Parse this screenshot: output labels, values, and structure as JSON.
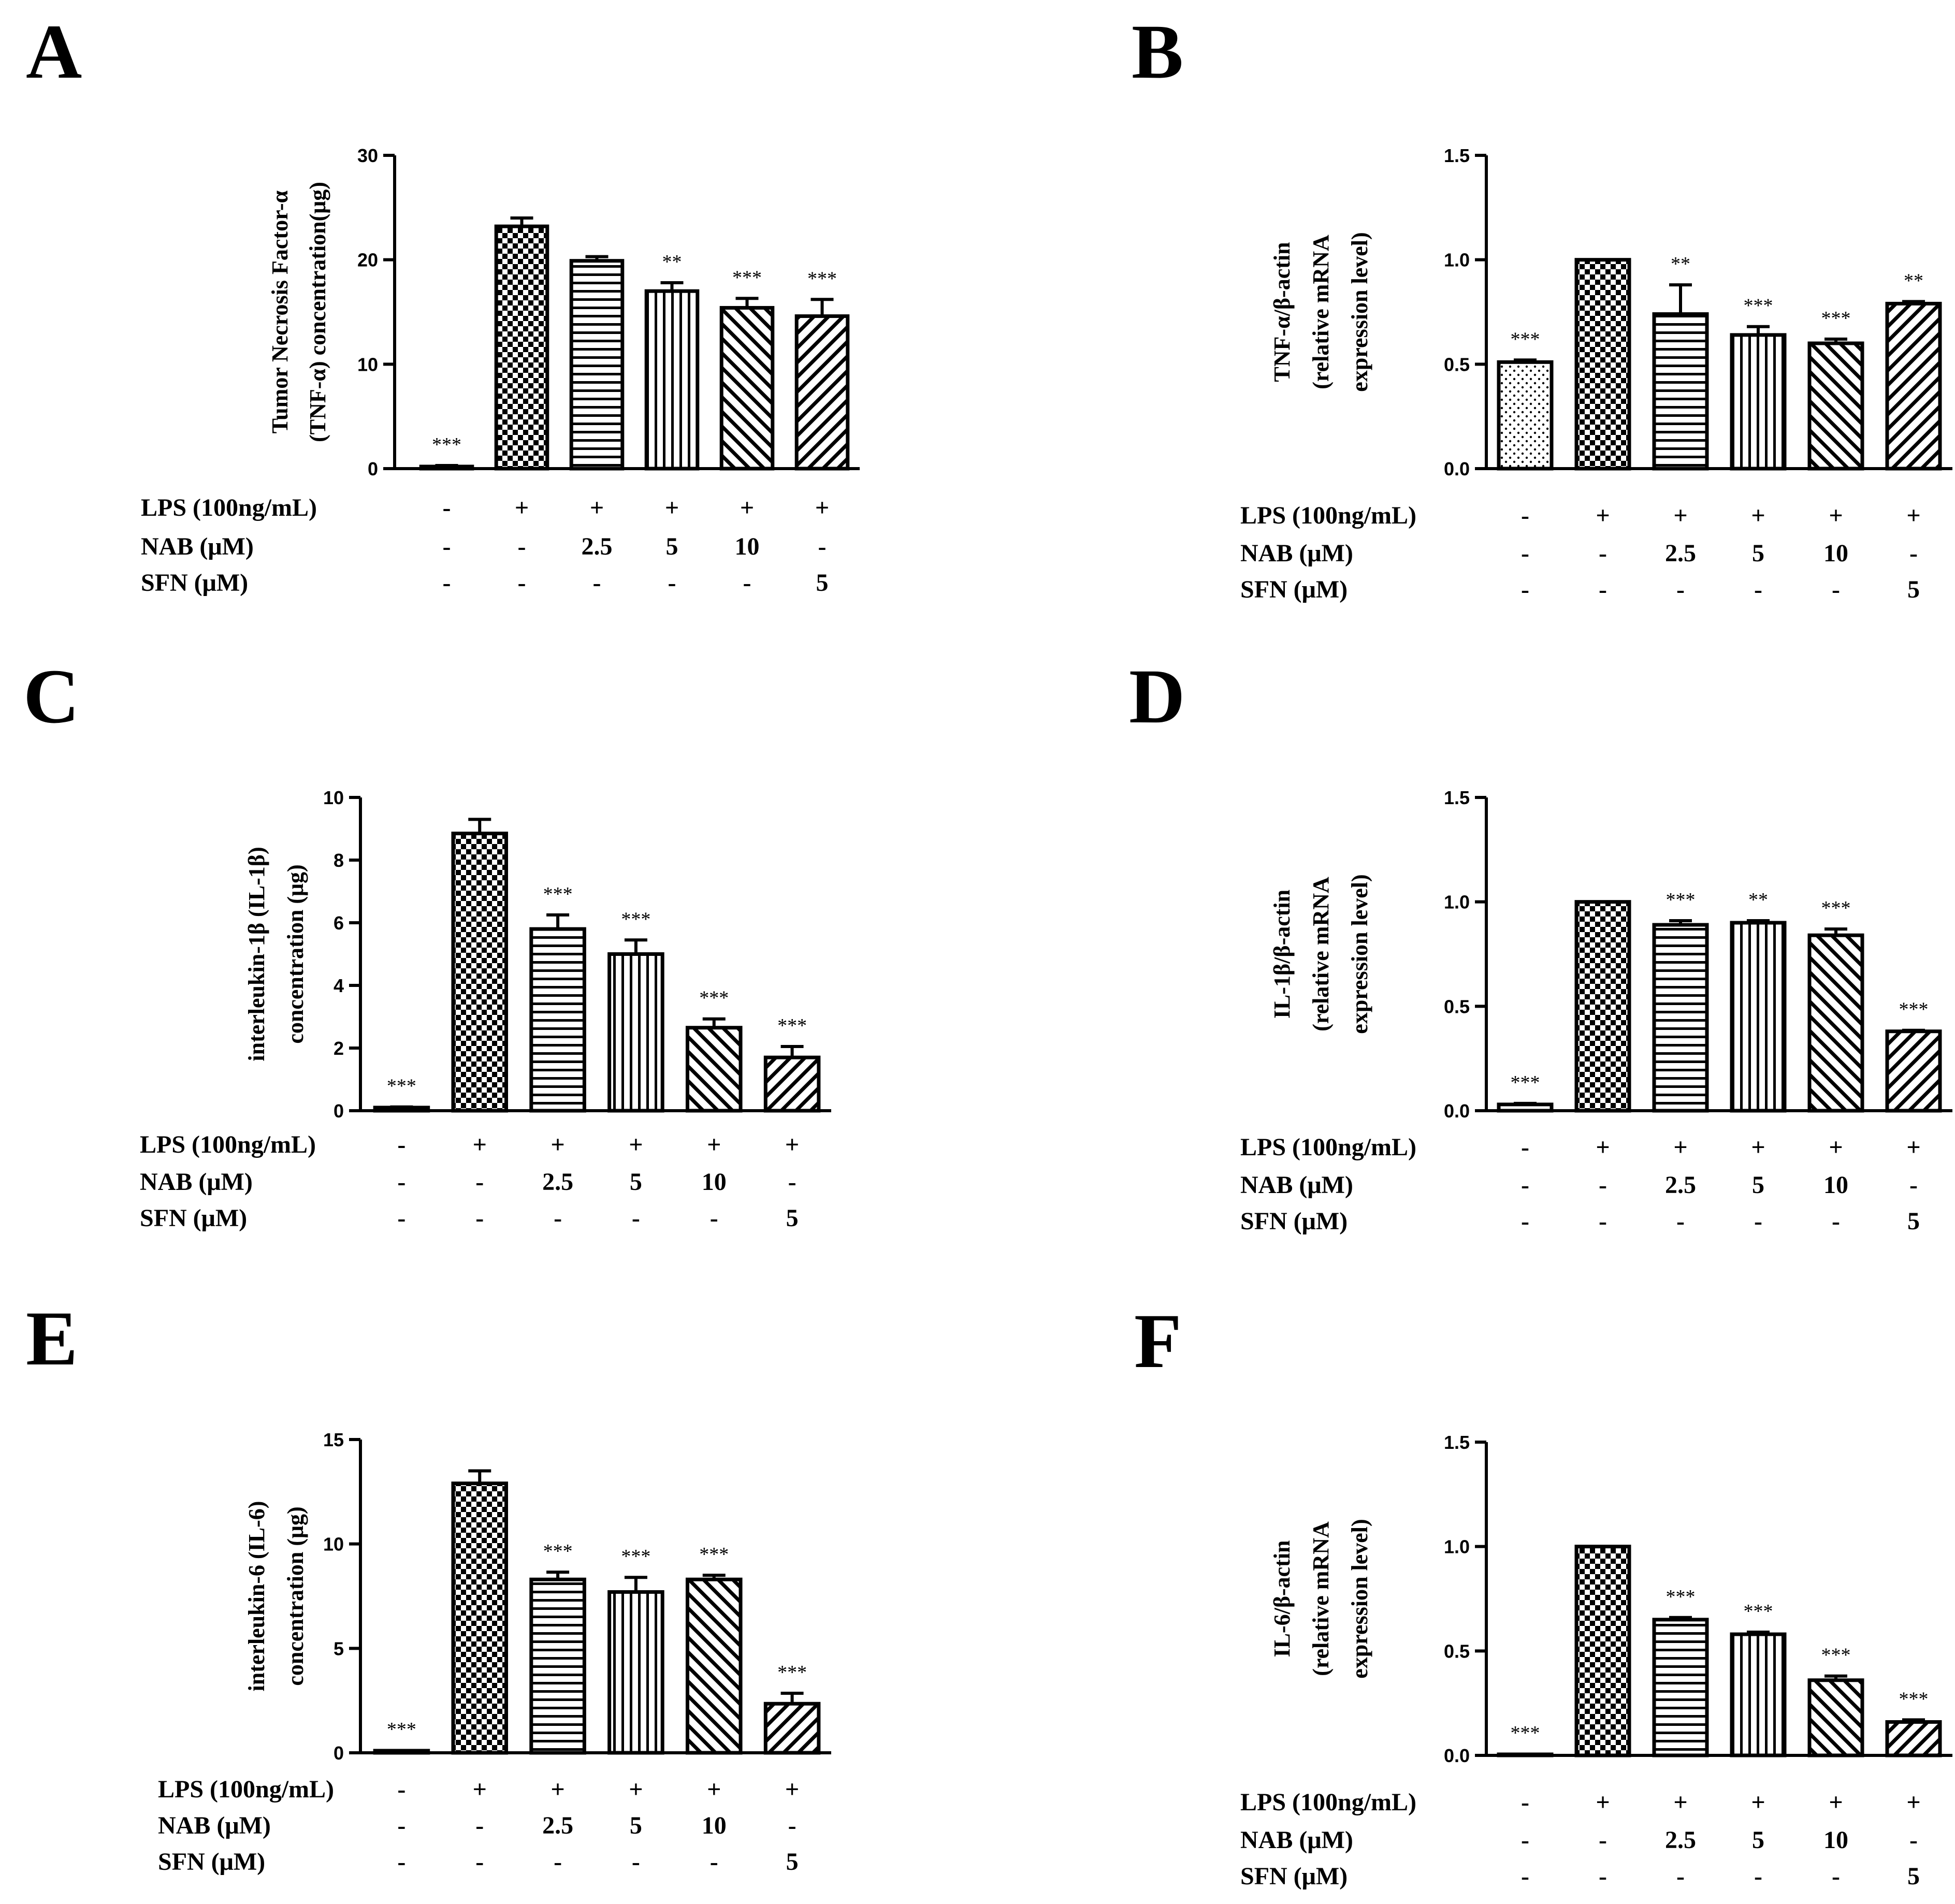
{
  "chart_data": [
    {
      "panel": "A",
      "type": "bar",
      "ylabel_lines": [
        "Tumor Necrosis Factor-α",
        "(TNF-α) concentration(μg)"
      ],
      "ylim": [
        0,
        30
      ],
      "yticks": [
        "0",
        "10",
        "20",
        "30"
      ],
      "ytick_values": [
        0,
        10,
        20,
        30
      ],
      "values": [
        0.2,
        23.2,
        19.9,
        17.0,
        15.4,
        14.6
      ],
      "errors": [
        0.1,
        0.8,
        0.4,
        0.8,
        0.9,
        1.6
      ],
      "significance": [
        "***",
        "",
        "",
        "**",
        "***",
        "***"
      ],
      "patterns": [
        "none",
        "checker",
        "hlines",
        "vlines",
        "diag",
        "diag2"
      ],
      "conditions": [
        {
          "label": "LPS (100ng/mL)",
          "values": [
            "-",
            "+",
            "+",
            "+",
            "+",
            "+"
          ]
        },
        {
          "label": "NAB (μM)",
          "values": [
            "-",
            "-",
            "2.5",
            "5",
            "10",
            "-"
          ]
        },
        {
          "label": "SFN (μM)",
          "values": [
            "-",
            "-",
            "-",
            "-",
            "-",
            "5"
          ]
        }
      ]
    },
    {
      "panel": "B",
      "type": "bar",
      "ylabel_lines": [
        "TNF-α/β-actin",
        "(relative mRNA",
        "expression level)"
      ],
      "ylim": [
        0,
        1.5
      ],
      "yticks": [
        "0.0",
        "0.5",
        "1.0",
        "1.5"
      ],
      "ytick_values": [
        0,
        0.5,
        1.0,
        1.5
      ],
      "values": [
        0.51,
        1.0,
        0.74,
        0.64,
        0.6,
        0.79
      ],
      "errors": [
        0.01,
        0.0,
        0.14,
        0.04,
        0.02,
        0.01
      ],
      "significance": [
        "***",
        "",
        "**",
        "***",
        "***",
        "**"
      ],
      "patterns": [
        "dots",
        "checker",
        "hlines",
        "vlines",
        "diag",
        "diag2"
      ],
      "conditions": [
        {
          "label": "LPS (100ng/mL)",
          "values": [
            "-",
            "+",
            "+",
            "+",
            "+",
            "+"
          ]
        },
        {
          "label": "NAB (μM)",
          "values": [
            "-",
            "-",
            "2.5",
            "5",
            "10",
            "-"
          ]
        },
        {
          "label": "SFN (μM)",
          "values": [
            "-",
            "-",
            "-",
            "-",
            "-",
            "5"
          ]
        }
      ]
    },
    {
      "panel": "C",
      "type": "bar",
      "ylabel_lines": [
        "interleukin-1β (IL-1β)",
        "concentration (μg)"
      ],
      "ylim": [
        0,
        10
      ],
      "yticks": [
        "0",
        "2",
        "4",
        "6",
        "8",
        "10"
      ],
      "ytick_values": [
        0,
        2,
        4,
        6,
        8,
        10
      ],
      "values": [
        0.1,
        8.85,
        5.8,
        5.0,
        2.65,
        1.7
      ],
      "errors": [
        0.02,
        0.45,
        0.45,
        0.45,
        0.28,
        0.35
      ],
      "significance": [
        "***",
        "",
        "***",
        "***",
        "***",
        "***"
      ],
      "patterns": [
        "none",
        "checker",
        "hlines",
        "vlines",
        "diag",
        "diag2"
      ],
      "conditions": [
        {
          "label": "LPS (100ng/mL)",
          "values": [
            "-",
            "+",
            "+",
            "+",
            "+",
            "+"
          ]
        },
        {
          "label": "NAB (μM)",
          "values": [
            "-",
            "-",
            "2.5",
            "5",
            "10",
            "-"
          ]
        },
        {
          "label": "SFN (μM)",
          "values": [
            "-",
            "-",
            "-",
            "-",
            "-",
            "5"
          ]
        }
      ]
    },
    {
      "panel": "D",
      "type": "bar",
      "ylabel_lines": [
        "IL-1β/β-actin",
        "(relative mRNA",
        "expression level)"
      ],
      "ylim": [
        0,
        1.5
      ],
      "yticks": [
        "0.0",
        "0.5",
        "1.0",
        "1.5"
      ],
      "ytick_values": [
        0,
        0.5,
        1.0,
        1.5
      ],
      "values": [
        0.03,
        1.0,
        0.89,
        0.9,
        0.84,
        0.38
      ],
      "errors": [
        0.005,
        0.0,
        0.02,
        0.01,
        0.03,
        0.005
      ],
      "significance": [
        "***",
        "",
        "***",
        "**",
        "***",
        "***"
      ],
      "patterns": [
        "none",
        "checker",
        "hlines",
        "vlines",
        "diag",
        "diag2"
      ],
      "conditions": [
        {
          "label": "LPS (100ng/mL)",
          "values": [
            "-",
            "+",
            "+",
            "+",
            "+",
            "+"
          ]
        },
        {
          "label": "NAB (μM)",
          "values": [
            "-",
            "-",
            "2.5",
            "5",
            "10",
            "-"
          ]
        },
        {
          "label": "SFN (μM)",
          "values": [
            "-",
            "-",
            "-",
            "-",
            "-",
            "5"
          ]
        }
      ]
    },
    {
      "panel": "E",
      "type": "bar",
      "ylabel_lines": [
        "interleukin-6 (IL-6)",
        "concentration (μg)"
      ],
      "ylim": [
        0,
        15
      ],
      "yticks": [
        "0",
        "5",
        "10",
        "15"
      ],
      "ytick_values": [
        0,
        5,
        10,
        15
      ],
      "values": [
        0.1,
        12.9,
        8.3,
        7.7,
        8.3,
        2.35
      ],
      "errors": [
        0.02,
        0.6,
        0.35,
        0.7,
        0.2,
        0.5
      ],
      "significance": [
        "***",
        "",
        "***",
        "***",
        "***",
        "***"
      ],
      "patterns": [
        "none",
        "checker",
        "hlines",
        "vlines",
        "diag",
        "diag2"
      ],
      "conditions": [
        {
          "label": "LPS (100ng/mL)",
          "values": [
            "-",
            "+",
            "+",
            "+",
            "+",
            "+"
          ]
        },
        {
          "label": "NAB (μM)",
          "values": [
            "-",
            "-",
            "2.5",
            "5",
            "10",
            "-"
          ]
        },
        {
          "label": "SFN (μM)",
          "values": [
            "-",
            "-",
            "-",
            "-",
            "-",
            "5"
          ]
        }
      ]
    },
    {
      "panel": "F",
      "type": "bar",
      "ylabel_lines": [
        "IL-6/β-actin",
        "(relative mRNA",
        "expression level)"
      ],
      "ylim": [
        0,
        1.5
      ],
      "yticks": [
        "0.0",
        "0.5",
        "1.0",
        "1.5"
      ],
      "ytick_values": [
        0,
        0.5,
        1.0,
        1.5
      ],
      "values": [
        0.005,
        1.0,
        0.65,
        0.58,
        0.36,
        0.16
      ],
      "errors": [
        0.002,
        0.0,
        0.01,
        0.01,
        0.02,
        0.01
      ],
      "significance": [
        "***",
        "",
        "***",
        "***",
        "***",
        "***"
      ],
      "patterns": [
        "none",
        "checker",
        "hlines",
        "vlines",
        "diag",
        "diag2"
      ],
      "conditions": [
        {
          "label": "LPS (100ng/mL)",
          "values": [
            "-",
            "+",
            "+",
            "+",
            "+",
            "+"
          ]
        },
        {
          "label": "NAB (μM)",
          "values": [
            "-",
            "-",
            "2.5",
            "5",
            "10",
            "-"
          ]
        },
        {
          "label": "SFN (μM)",
          "values": [
            "-",
            "-",
            "-",
            "-",
            "-",
            "5"
          ]
        }
      ]
    }
  ]
}
